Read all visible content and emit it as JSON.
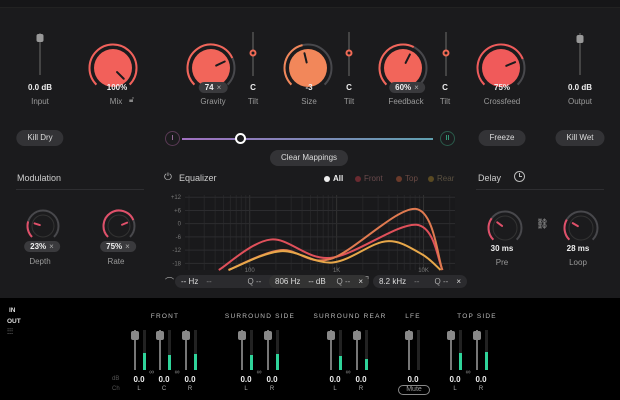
{
  "colors": {
    "knob_red": "#f2605a",
    "knob_orange": "#f2875a",
    "accent": "#f06a55",
    "meter": "#2fd49a",
    "front": "#e0505a",
    "top": "#e07a50",
    "rear": "#e8a84a"
  },
  "top": {
    "input": {
      "value": "0.0 dB",
      "label": "Input"
    },
    "mix": {
      "value": "100%",
      "label": "Mix",
      "fraction": 1.0
    },
    "gravity": {
      "value": "74",
      "label": "Gravity",
      "fraction": 0.74
    },
    "tilt1": {
      "value": "C",
      "label": "Tilt"
    },
    "size": {
      "value": "-3",
      "label": "Size",
      "fraction": 0.45
    },
    "tilt2": {
      "value": "C",
      "label": "Tilt"
    },
    "feedback": {
      "value": "60%",
      "label": "Feedback",
      "fraction": 0.6
    },
    "tilt3": {
      "value": "C",
      "label": "Tilt"
    },
    "crossfeed": {
      "value": "75%",
      "label": "Crossfeed",
      "fraction": 0.75
    },
    "output": {
      "value": "0.0 dB",
      "label": "Output"
    },
    "clear_x": "×"
  },
  "buttons": {
    "kill_dry": "Kill Dry",
    "freeze": "Freeze",
    "kill_wet": "Kill Wet",
    "clear_mappings": "Clear Mappings",
    "morph_left": "I",
    "morph_right": "II",
    "morph_position": 0.23
  },
  "modulation": {
    "title": "Modulation",
    "depth": {
      "value": "23%",
      "label": "Depth",
      "fraction": 0.23
    },
    "rate": {
      "value": "75%",
      "label": "Rate",
      "fraction": 0.75
    }
  },
  "delay": {
    "title": "Delay",
    "pre": {
      "value": "30 ms",
      "label": "Pre",
      "fraction": 0.3
    },
    "loop": {
      "value": "28 ms",
      "label": "Loop",
      "fraction": 0.28
    }
  },
  "equalizer": {
    "title": "Equalizer",
    "legend": [
      "All",
      "Front",
      "Top",
      "Rear"
    ],
    "y_ticks": [
      "+12",
      "+6",
      "0",
      "-6",
      "-12",
      "-18"
    ],
    "x_ticks": [
      "100",
      "1K",
      "10K"
    ],
    "bands": [
      {
        "freq": "-- Hz",
        "gain": "--",
        "q": "Q --"
      },
      {
        "freq": "806 Hz",
        "gain": "-- dB",
        "q": "Q --"
      },
      {
        "freq": "8.2 kHz",
        "gain": "--",
        "q": "Q --"
      }
    ]
  },
  "chart_data": {
    "type": "line",
    "xscale": "log",
    "xlim": [
      18,
      23000
    ],
    "ylim": [
      -21,
      13
    ],
    "series": [
      {
        "name": "Front",
        "points": [
          [
            44,
            -21
          ],
          [
            174,
            -7.2
          ],
          [
            853,
            -15.5
          ],
          [
            8300,
            -0.5
          ],
          [
            16500,
            -21
          ]
        ]
      },
      {
        "name": "Top",
        "points": [
          [
            57,
            -21
          ],
          [
            227,
            -12
          ],
          [
            853,
            -16
          ],
          [
            8090,
            6.7
          ],
          [
            16500,
            -21
          ]
        ]
      },
      {
        "name": "Rear",
        "points": [
          [
            57,
            -21
          ],
          [
            227,
            -12.5
          ],
          [
            900,
            -17.6
          ],
          [
            3660,
            -8
          ],
          [
            9250,
            -13.5
          ],
          [
            15700,
            -21
          ]
        ]
      }
    ]
  },
  "io": {
    "in": "IN",
    "out": "OUT",
    "db": "dB",
    "ch": "Ch"
  },
  "mixer": {
    "groups": [
      {
        "name": "FRONT",
        "channels": [
          {
            "ch": "L",
            "value": "0.0",
            "level": 0.42
          },
          {
            "ch": "C",
            "value": "0.0",
            "level": 0.38
          },
          {
            "ch": "R",
            "value": "0.0",
            "level": 0.4
          }
        ]
      },
      {
        "name": "SURROUND SIDE",
        "channels": [
          {
            "ch": "L",
            "value": "0.0",
            "level": 0.38
          },
          {
            "ch": "R",
            "value": "0.0",
            "level": 0.4
          }
        ]
      },
      {
        "name": "SURROUND REAR",
        "channels": [
          {
            "ch": "L",
            "value": "0.0",
            "level": 0.35
          },
          {
            "ch": "R",
            "value": "0.0",
            "level": 0.28
          }
        ]
      },
      {
        "name": "LFE",
        "channels": [
          {
            "ch": "",
            "value": "0.0",
            "level": 0
          }
        ]
      },
      {
        "name": "TOP SIDE",
        "channels": [
          {
            "ch": "L",
            "value": "0.0",
            "level": 0.42
          },
          {
            "ch": "R",
            "value": "0.0",
            "level": 0.45
          }
        ]
      }
    ],
    "mute": "Mute"
  }
}
